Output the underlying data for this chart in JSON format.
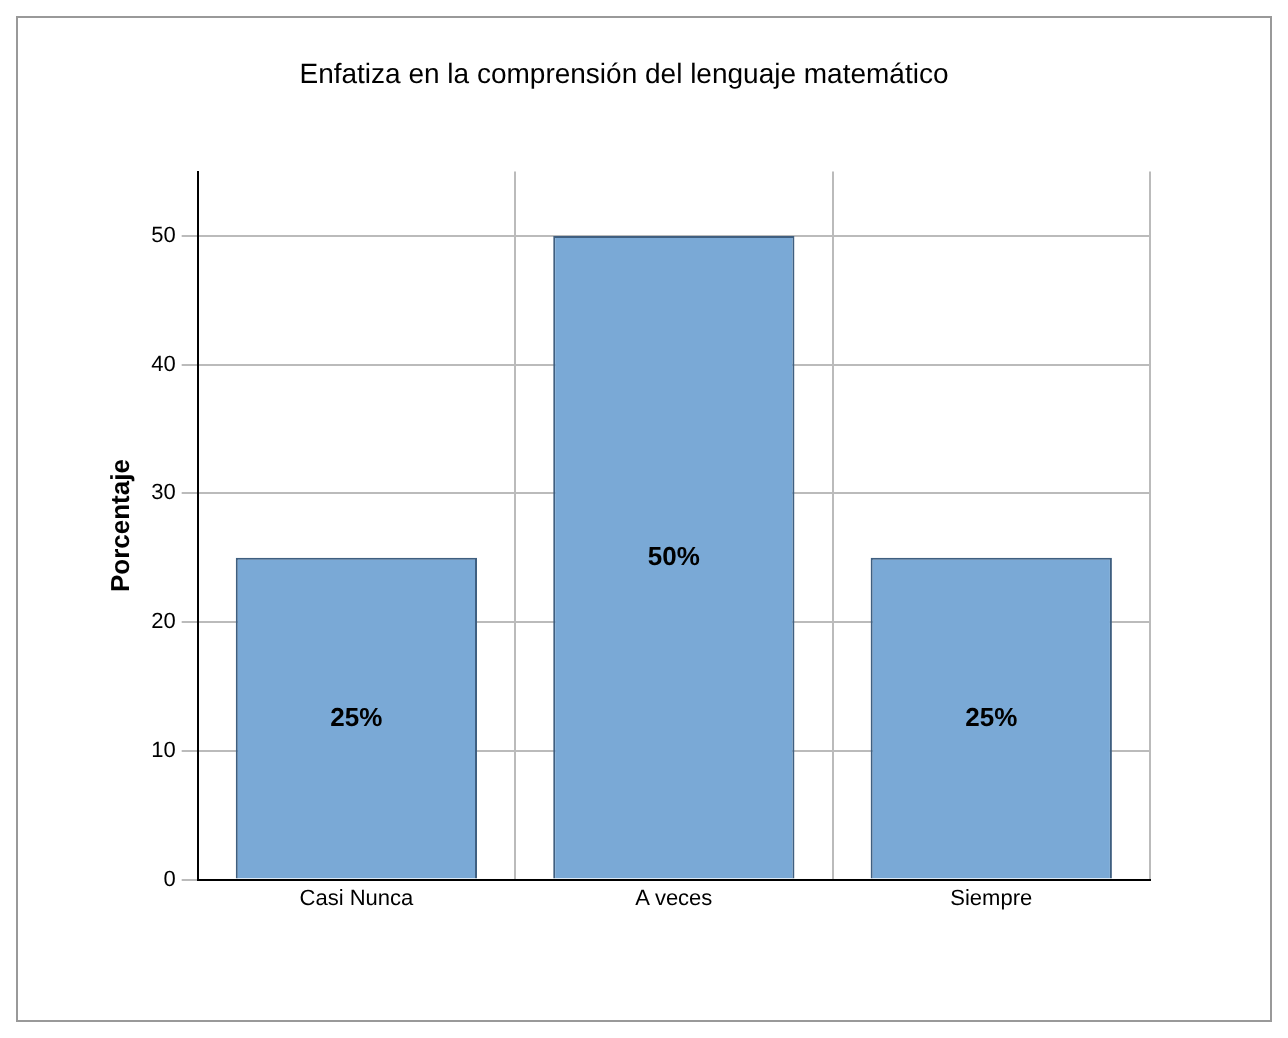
{
  "chart_data": {
    "type": "bar",
    "title": "Enfatiza en la comprensión del lenguaje matemático",
    "ylabel": "Porcentaje",
    "categories": [
      "Casi Nunca",
      "A veces",
      "Siempre"
    ],
    "values": [
      25,
      50,
      25
    ],
    "color": "#7aa9d6",
    "value_labels": [
      "25%",
      "50%",
      "25%"
    ],
    "ylim": [
      0,
      55
    ],
    "yticks": [
      0,
      10,
      20,
      30,
      40,
      50
    ],
    "grid": true
  }
}
